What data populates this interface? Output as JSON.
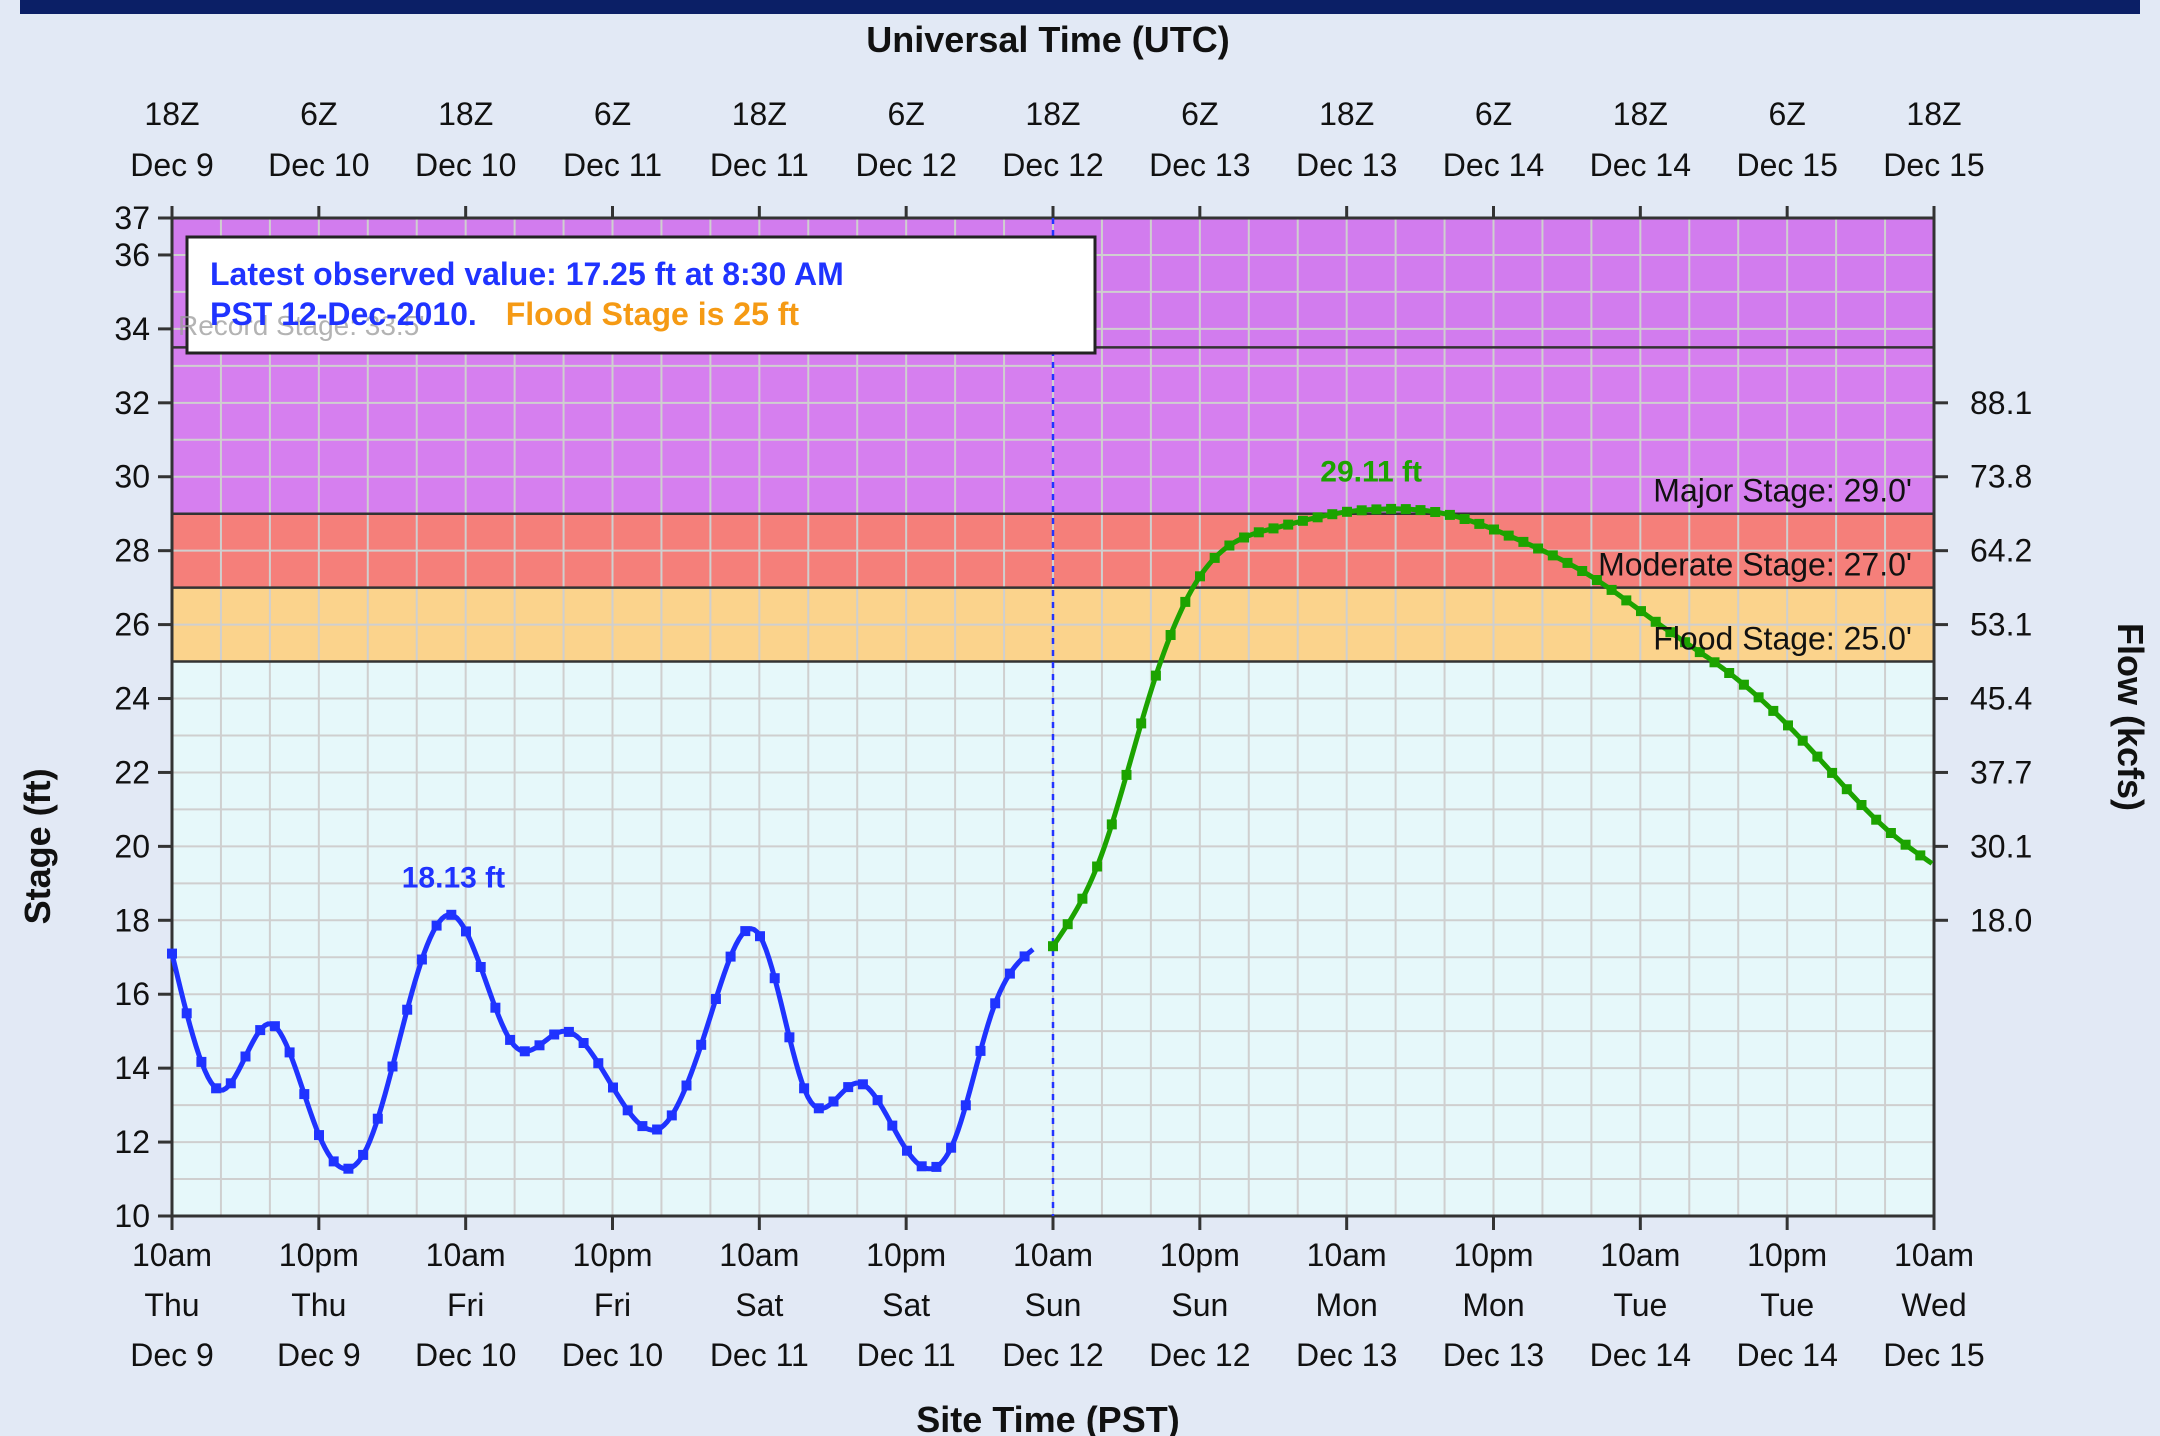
{
  "chart_data": {
    "type": "line",
    "title": "",
    "top_axis_title": "Universal Time (UTC)",
    "bottom_axis_title": "Site Time (PST)",
    "ylabel": "Stage (ft)",
    "y2label": "Flow (kcfs)",
    "xlim": [
      "2010-12-09T10:00",
      "2010-12-15T10:00"
    ],
    "ylim": [
      10,
      37
    ],
    "grid": true,
    "yticks": [
      10,
      12,
      14,
      16,
      18,
      20,
      22,
      24,
      26,
      28,
      30,
      32,
      34,
      36,
      37
    ],
    "flow_ticks": [
      {
        "stage": 18,
        "label": "18.0"
      },
      {
        "stage": 20,
        "label": "30.1"
      },
      {
        "stage": 22,
        "label": "37.7"
      },
      {
        "stage": 24,
        "label": "45.4"
      },
      {
        "stage": 26,
        "label": "53.1"
      },
      {
        "stage": 28,
        "label": "64.2"
      },
      {
        "stage": 30,
        "label": "73.8"
      },
      {
        "stage": 32,
        "label": "88.1"
      }
    ],
    "top_ticks": [
      {
        "hour": "18Z",
        "date": "Dec  9"
      },
      {
        "hour": "6Z",
        "date": "Dec 10"
      },
      {
        "hour": "18Z",
        "date": "Dec 10"
      },
      {
        "hour": "6Z",
        "date": "Dec 11"
      },
      {
        "hour": "18Z",
        "date": "Dec 11"
      },
      {
        "hour": "6Z",
        "date": "Dec 12"
      },
      {
        "hour": "18Z",
        "date": "Dec 12"
      },
      {
        "hour": "6Z",
        "date": "Dec 13"
      },
      {
        "hour": "18Z",
        "date": "Dec 13"
      },
      {
        "hour": "6Z",
        "date": "Dec 14"
      },
      {
        "hour": "18Z",
        "date": "Dec 14"
      },
      {
        "hour": "6Z",
        "date": "Dec 15"
      },
      {
        "hour": "18Z",
        "date": "Dec 15"
      }
    ],
    "bottom_ticks": [
      {
        "time": "10am",
        "day": "Thu",
        "date": "Dec 9"
      },
      {
        "time": "10pm",
        "day": "Thu",
        "date": "Dec 9"
      },
      {
        "time": "10am",
        "day": "Fri",
        "date": "Dec 10"
      },
      {
        "time": "10pm",
        "day": "Fri",
        "date": "Dec 10"
      },
      {
        "time": "10am",
        "day": "Sat",
        "date": "Dec 11"
      },
      {
        "time": "10pm",
        "day": "Sat",
        "date": "Dec 11"
      },
      {
        "time": "10am",
        "day": "Sun",
        "date": "Dec 12"
      },
      {
        "time": "10pm",
        "day": "Sun",
        "date": "Dec 12"
      },
      {
        "time": "10am",
        "day": "Mon",
        "date": "Dec 13"
      },
      {
        "time": "10pm",
        "day": "Mon",
        "date": "Dec 13"
      },
      {
        "time": "10am",
        "day": "Tue",
        "date": "Dec 14"
      },
      {
        "time": "10pm",
        "day": "Tue",
        "date": "Dec 14"
      },
      {
        "time": "10am",
        "day": "Wed",
        "date": "Dec 15"
      }
    ],
    "bands": [
      {
        "from": 10,
        "to": 25,
        "color": "#e6f8fa"
      },
      {
        "from": 25,
        "to": 27,
        "color": "#fbd38c",
        "label": "Flood Stage: 25.0'"
      },
      {
        "from": 27,
        "to": 29,
        "color": "#f57f7a",
        "label": "Moderate Stage: 27.0'"
      },
      {
        "from": 29,
        "to": 33.5,
        "color": "#d67fef",
        "label": "Major Stage: 29.0'"
      },
      {
        "from": 33.5,
        "to": 37,
        "color": "#d27cee"
      }
    ],
    "now_marker": "2010-12-12T10:00",
    "legend": {
      "line1": "Latest observed value: 17.25 ft at 8:30 AM",
      "line2": "PST 12-Dec-2010.",
      "line3": "Flood Stage is 25 ft",
      "behind_text": "Record Stage: 33.5'"
    },
    "series": [
      {
        "name": "Observed",
        "color": "#1f33ff",
        "peak_label": "18.13 ft",
        "peak_at": "2010-12-10T09:00",
        "x": [
          "2010-12-09T10:00",
          "2010-12-09T14:00",
          "2010-12-09T18:00",
          "2010-12-09T22:00",
          "2010-12-10T02:00",
          "2010-12-10T06:00",
          "2010-12-10T09:00",
          "2010-12-10T14:00",
          "2010-12-10T18:00",
          "2010-12-10T22:00",
          "2010-12-11T02:00",
          "2010-12-11T06:00",
          "2010-12-11T10:00",
          "2010-12-11T14:00",
          "2010-12-11T18:00",
          "2010-12-11T22:00",
          "2010-12-12T02:00",
          "2010-12-12T05:00",
          "2010-12-12T08:30"
        ],
        "y": [
          17.1,
          13.4,
          15.2,
          12.2,
          11.9,
          16.5,
          18.13,
          14.6,
          15.0,
          13.5,
          12.4,
          15.4,
          17.6,
          13.2,
          13.6,
          11.8,
          12.1,
          15.5,
          17.25
        ]
      },
      {
        "name": "Forecast",
        "color": "#1ca300",
        "peak_label": "29.11 ft",
        "peak_at": "2010-12-13T12:00",
        "x": [
          "2010-12-12T10:00",
          "2010-12-12T14:00",
          "2010-12-12T18:00",
          "2010-12-12T22:00",
          "2010-12-13T04:00",
          "2010-12-13T10:00",
          "2010-12-13T12:00",
          "2010-12-13T18:00",
          "2010-12-14T00:00",
          "2010-12-14T06:00",
          "2010-12-14T12:00",
          "2010-12-14T18:00",
          "2010-12-15T00:00",
          "2010-12-15T06:00",
          "2010-12-15T10:00"
        ],
        "y": [
          17.3,
          19.8,
          24.2,
          27.3,
          28.6,
          29.05,
          29.11,
          29.0,
          28.3,
          27.3,
          25.9,
          24.5,
          22.6,
          20.5,
          19.5
        ]
      }
    ]
  }
}
